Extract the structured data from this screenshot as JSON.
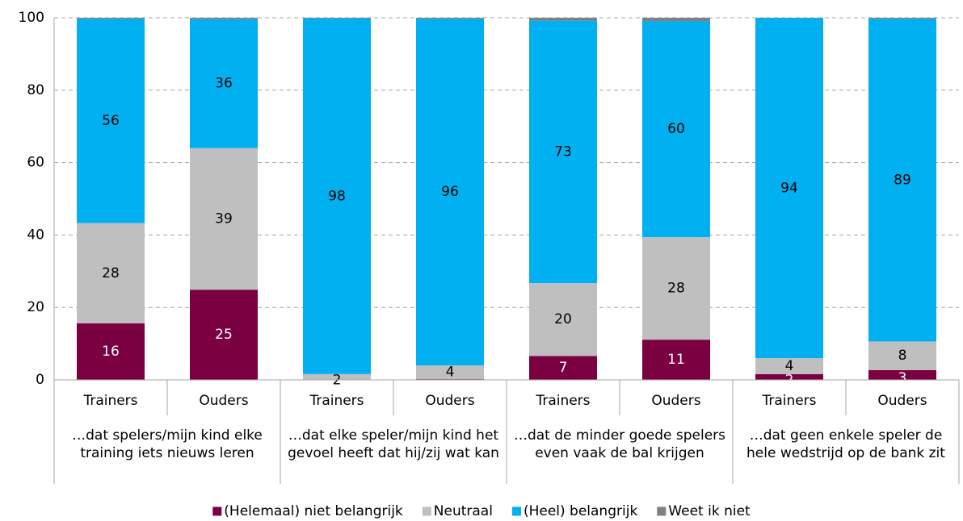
{
  "chart_data": {
    "type": "stacked_bar",
    "categories": [
      "Trainers",
      "Ouders",
      "Trainers",
      "Ouders",
      "Trainers",
      "Ouders",
      "Trainers",
      "Ouders"
    ],
    "groups": [
      "…dat spelers/mijn kind elke training iets nieuws leren",
      "…dat elke speler/mijn kind het gevoel heeft dat hij/zij wat kan",
      "…dat de minder goede spelers even vaak de bal krijgen",
      "…dat geen enkele speler de hele wedstrijd op de bank zit"
    ],
    "series": [
      {
        "name": "(Helemaal) niet belangrijk",
        "color": "#7b0041",
        "label_color": "#ffffff",
        "values": [
          15.6,
          24.9,
          0,
          0.2,
          6.6,
          11.1,
          1.6,
          2.7
        ],
        "value_labels": [
          "16",
          "25",
          null,
          null,
          "7",
          "11",
          "2",
          "3"
        ]
      },
      {
        "name": "Neutraal",
        "color": "#bfbfbf",
        "label_color": "#000000",
        "values": [
          27.7,
          39.1,
          1.6,
          3.8,
          20.1,
          28.3,
          4.4,
          7.9
        ],
        "value_labels": [
          "28",
          "39",
          "2",
          "4",
          "20",
          "28",
          "4",
          "8"
        ]
      },
      {
        "name": "(Heel) belangrijk",
        "color": "#00b0f0",
        "label_color": "#000000",
        "values": [
          56.4,
          35.6,
          98.2,
          95.7,
          72.5,
          59.7,
          93.9,
          89.1
        ],
        "value_labels": [
          "56",
          "36",
          "98",
          "96",
          "73",
          "60",
          "94",
          "89"
        ]
      },
      {
        "name": "Weet ik niet",
        "color": "#808080",
        "label_color": "#000000",
        "values": [
          0.3,
          0.4,
          0.2,
          0.3,
          0.8,
          0.9,
          0.1,
          0.3
        ],
        "value_labels": [
          null,
          null,
          null,
          null,
          null,
          null,
          null,
          null
        ]
      }
    ],
    "ylim": [
      0,
      100
    ],
    "yticks": [
      0,
      20,
      40,
      60,
      80,
      100
    ],
    "grid": true,
    "legend": "bottom"
  }
}
